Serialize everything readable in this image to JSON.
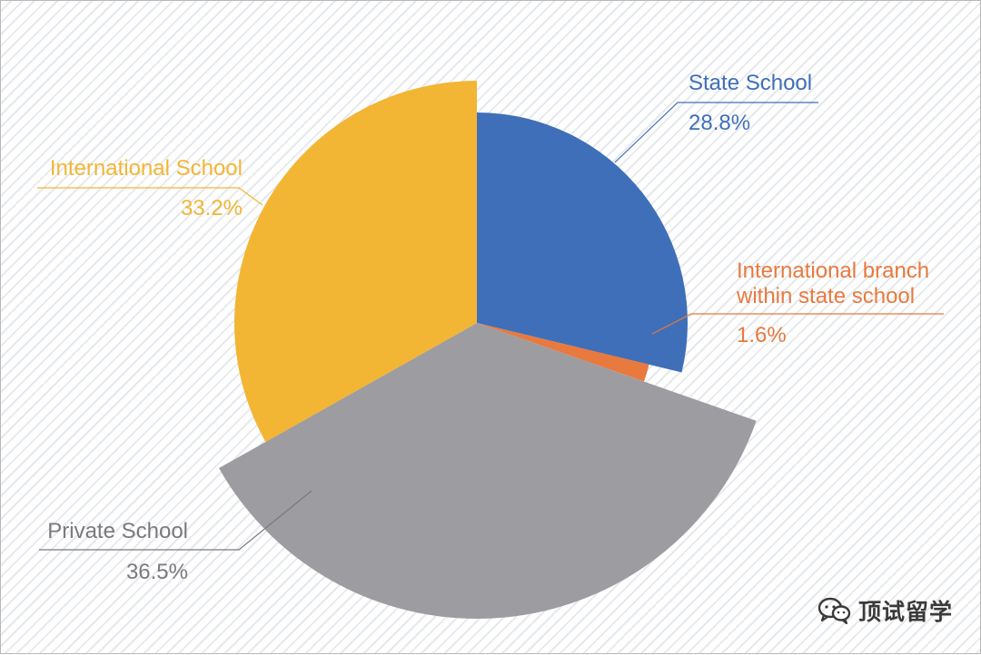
{
  "chart_data": {
    "type": "pie",
    "title": "",
    "slices": [
      {
        "label": "State School",
        "value": 28.8,
        "value_label": "28.8%",
        "color": "#3f6fb8"
      },
      {
        "label": "International branch within state school",
        "label_lines": [
          "International branch",
          "within state school"
        ],
        "value": 1.6,
        "value_label": "1.6%",
        "color": "#e8793f"
      },
      {
        "label": "Private School",
        "value": 36.5,
        "value_label": "36.5%",
        "color": "#9d9ca1"
      },
      {
        "label": "International School",
        "value": 33.2,
        "value_label": "33.2%",
        "color": "#f3b534"
      }
    ],
    "grid": false,
    "legend": "none"
  },
  "watermark": {
    "text": "顶试留学",
    "icon": "wechat-icon"
  }
}
